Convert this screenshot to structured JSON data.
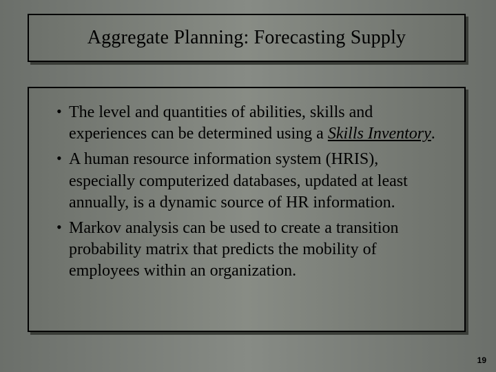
{
  "slide": {
    "background_gradient": [
      "#6b6f6a",
      "#878b85",
      "#6b6f6a"
    ],
    "shadow_color": "#3a3d38",
    "border_color": "#000000",
    "title": {
      "text": "Aggregate Planning: Forecasting Supply",
      "fontsize": 28,
      "color": "#000000"
    },
    "bullets": [
      {
        "pre": "The level and quantities of abilities, skills and experiences can be determined using a ",
        "emph": "Skills Inventory",
        "post": "."
      },
      {
        "pre": "A human resource information system (HRIS), especially computerized databases, updated at least annually, is a dynamic source of HR information.",
        "emph": "",
        "post": ""
      },
      {
        "pre": "Markov analysis can be used to create a transition probability matrix that predicts the mobility of employees within an organization.",
        "emph": "",
        "post": ""
      }
    ],
    "bullet_fontsize": 24,
    "page_number": "19",
    "page_number_fontsize": 12
  }
}
